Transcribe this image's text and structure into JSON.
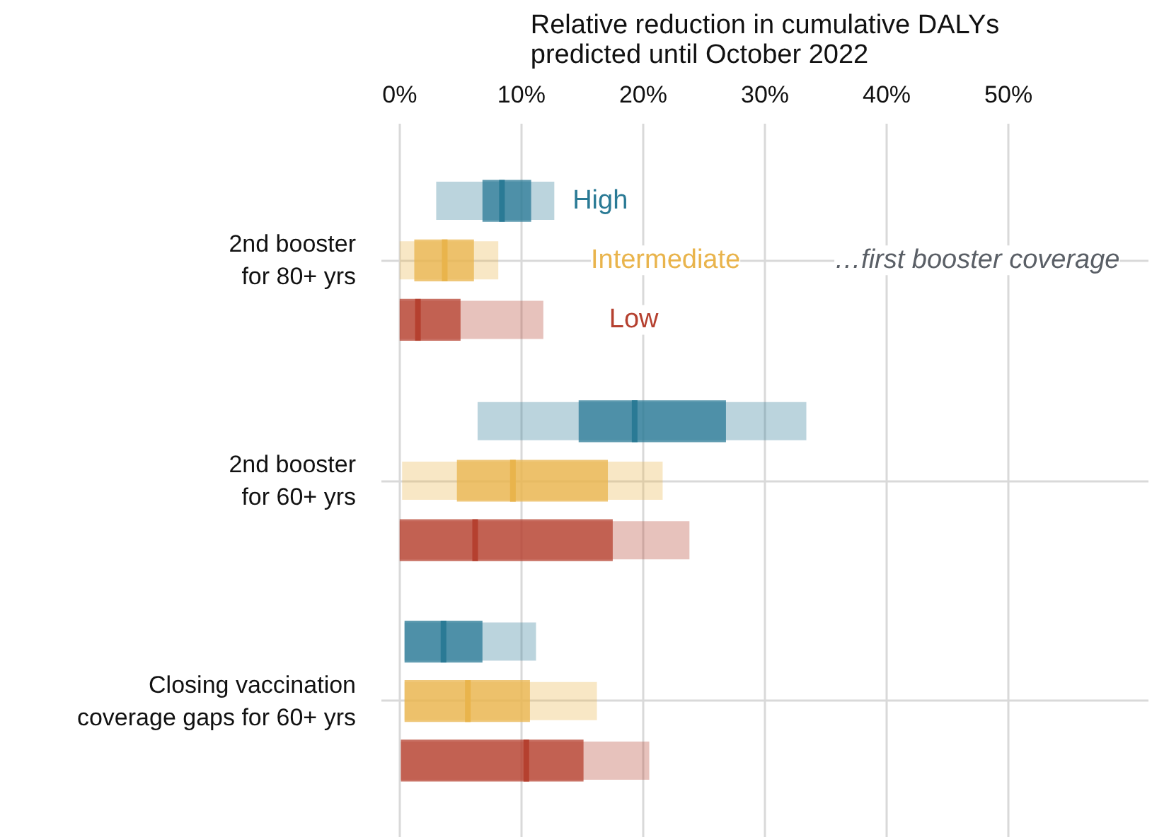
{
  "chart_data": {
    "type": "box",
    "orientation": "horizontal",
    "title": "Relative reduction in cumulative DALYs\npredicted until October 2022",
    "categories": [
      "2nd booster\nfor 80+ yrs",
      "2nd booster\nfor 60+ yrs",
      "Closing vaccination\ncoverage gaps for 60+ yrs"
    ],
    "series": [
      {
        "name": "High",
        "color": "#2a7a95",
        "boxes": [
          {
            "low": 3.0,
            "q1": 6.8,
            "median": 8.4,
            "q3": 10.8,
            "high": 12.7
          },
          {
            "low": 6.4,
            "q1": 14.7,
            "median": 19.3,
            "q3": 26.8,
            "high": 33.4
          },
          {
            "low": 0.4,
            "q1": 0.4,
            "median": 3.6,
            "q3": 6.8,
            "high": 11.2
          }
        ]
      },
      {
        "name": "Intermediate",
        "color": "#e9b44c",
        "boxes": [
          {
            "low": 0.0,
            "q1": 1.2,
            "median": 3.7,
            "q3": 6.1,
            "high": 8.1
          },
          {
            "low": 0.2,
            "q1": 4.7,
            "median": 9.3,
            "q3": 17.1,
            "high": 21.6
          },
          {
            "low": 0.4,
            "q1": 0.4,
            "median": 5.6,
            "q3": 10.7,
            "high": 16.2
          }
        ]
      },
      {
        "name": "Low",
        "color": "#b5402f",
        "boxes": [
          {
            "low": 0.0,
            "q1": 0.0,
            "median": 1.5,
            "q3": 5.0,
            "high": 11.8
          },
          {
            "low": 0.0,
            "q1": 0.0,
            "median": 6.2,
            "q3": 17.5,
            "high": 23.8
          },
          {
            "low": 0.1,
            "q1": 0.1,
            "median": 10.4,
            "q3": 15.1,
            "high": 20.5
          }
        ]
      }
    ],
    "annotations": [
      "…first booster coverage"
    ],
    "xlim": [
      -1.5,
      61.5
    ],
    "xticks": [
      {
        "value": 0,
        "label": "0%"
      },
      {
        "value": 10,
        "label": "10%"
      },
      {
        "value": 20,
        "label": "20%"
      },
      {
        "value": 30,
        "label": "30%"
      },
      {
        "value": 40,
        "label": "40%"
      },
      {
        "value": 50,
        "label": "50%"
      }
    ],
    "grid": true
  }
}
